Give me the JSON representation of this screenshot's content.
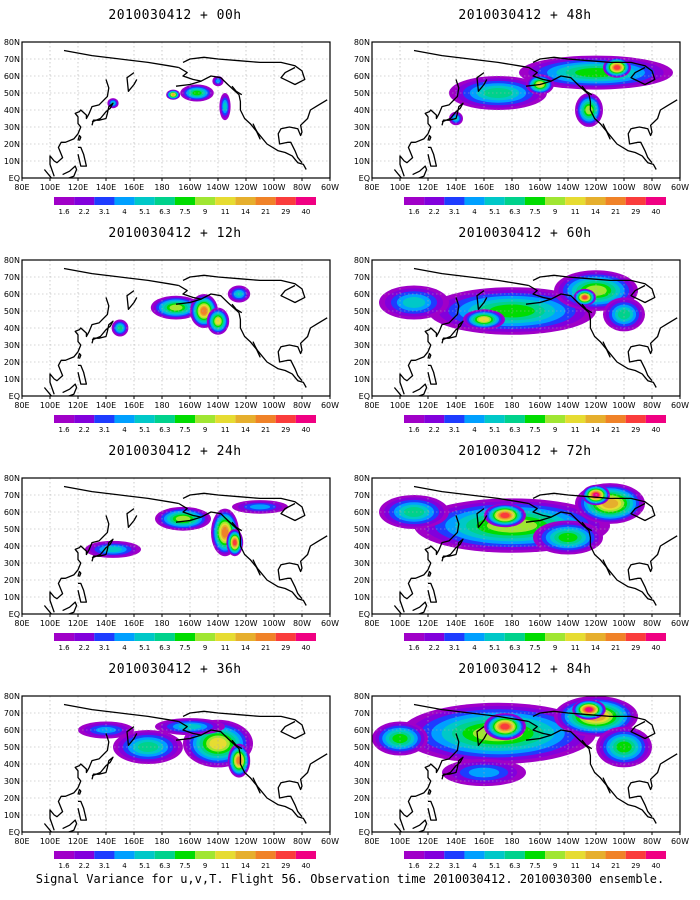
{
  "caption": "Signal Variance for u,v,T. Flight 56. Observation time 2010030412. 2010030300 ensemble.",
  "lon_ticks": [
    "80E",
    "100E",
    "120E",
    "140E",
    "160E",
    "180",
    "160W",
    "140W",
    "120W",
    "100W",
    "80W",
    "60W"
  ],
  "lat_ticks": [
    "80N",
    "70N",
    "60N",
    "50N",
    "40N",
    "30N",
    "20N",
    "10N",
    "EQ"
  ],
  "colorbar": {
    "labels": [
      "1.6",
      "2.2",
      "3.1",
      "4",
      "5.1",
      "6.3",
      "7.5",
      "9",
      "11",
      "14",
      "21",
      "29",
      "40"
    ],
    "colors": [
      "#a000c8",
      "#8200dc",
      "#1e3cff",
      "#00a0ff",
      "#00c8c8",
      "#00d28c",
      "#00dc00",
      "#a0e632",
      "#e6dc32",
      "#e6af2d",
      "#f08228",
      "#fa3c3c",
      "#f00082"
    ]
  },
  "chart_data": [
    {
      "type": "heatmap",
      "title": "2010030412 + 00h",
      "blobs": [
        [
          -155,
          50,
          12,
          5,
          6
        ],
        [
          -172,
          49,
          5,
          3,
          9
        ],
        [
          -135,
          42,
          4,
          8,
          4
        ],
        [
          145,
          44,
          4,
          3,
          4
        ],
        [
          -140,
          57,
          4,
          3,
          3
        ]
      ]
    },
    {
      "type": "heatmap",
      "title": "2010030412 + 12h",
      "blobs": [
        [
          -170,
          52,
          18,
          7,
          7
        ],
        [
          -150,
          50,
          10,
          10,
          10
        ],
        [
          -140,
          44,
          8,
          8,
          8
        ],
        [
          150,
          40,
          6,
          5,
          5
        ],
        [
          -125,
          60,
          8,
          5,
          4
        ]
      ]
    },
    {
      "type": "heatmap",
      "title": "2010030412 + 24h",
      "blobs": [
        [
          -165,
          56,
          20,
          7,
          7
        ],
        [
          -135,
          48,
          10,
          14,
          10
        ],
        [
          -128,
          42,
          6,
          8,
          11
        ],
        [
          145,
          38,
          20,
          5,
          4
        ],
        [
          -110,
          63,
          20,
          4,
          3
        ]
      ]
    },
    {
      "type": "heatmap",
      "title": "2010030412 + 36h",
      "blobs": [
        [
          170,
          50,
          25,
          10,
          5
        ],
        [
          -140,
          52,
          25,
          14,
          8
        ],
        [
          -125,
          42,
          8,
          10,
          10
        ],
        [
          -160,
          62,
          25,
          5,
          4
        ],
        [
          140,
          60,
          20,
          5,
          3
        ]
      ]
    },
    {
      "type": "heatmap",
      "title": "2010030412 + 48h",
      "blobs": [
        [
          -120,
          62,
          55,
          10,
          6
        ],
        [
          170,
          50,
          35,
          10,
          5
        ],
        [
          -125,
          40,
          10,
          10,
          7
        ],
        [
          -160,
          55,
          10,
          6,
          8
        ],
        [
          -105,
          65,
          10,
          6,
          11
        ],
        [
          140,
          35,
          5,
          4,
          4
        ]
      ]
    },
    {
      "type": "heatmap",
      "title": "2010030412 + 60h",
      "blobs": [
        [
          180,
          50,
          60,
          14,
          6
        ],
        [
          -120,
          62,
          30,
          12,
          7
        ],
        [
          -128,
          58,
          8,
          5,
          11
        ],
        [
          -100,
          48,
          15,
          10,
          5
        ],
        [
          160,
          45,
          15,
          6,
          8
        ],
        [
          110,
          55,
          25,
          10,
          4
        ]
      ]
    },
    {
      "type": "heatmap",
      "title": "2010030412 + 72h",
      "blobs": [
        [
          180,
          52,
          70,
          16,
          7
        ],
        [
          -110,
          65,
          25,
          12,
          9
        ],
        [
          -120,
          70,
          10,
          6,
          12
        ],
        [
          175,
          58,
          15,
          7,
          11
        ],
        [
          110,
          60,
          25,
          10,
          5
        ],
        [
          -140,
          45,
          25,
          10,
          6
        ]
      ]
    },
    {
      "type": "heatmap",
      "title": "2010030412 + 84h",
      "blobs": [
        [
          170,
          58,
          70,
          18,
          7
        ],
        [
          -120,
          68,
          30,
          12,
          9
        ],
        [
          -125,
          72,
          12,
          6,
          12
        ],
        [
          175,
          62,
          15,
          8,
          11
        ],
        [
          100,
          55,
          20,
          10,
          6
        ],
        [
          -100,
          50,
          20,
          12,
          6
        ],
        [
          160,
          35,
          30,
          8,
          3
        ]
      ]
    }
  ]
}
